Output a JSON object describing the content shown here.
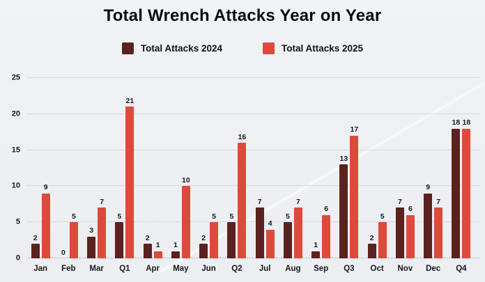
{
  "title": "Total Wrench Attacks Year on Year",
  "legend": [
    {
      "label": "Total Attacks 2024",
      "color": "#5B211F"
    },
    {
      "label": "Total Attacks 2025",
      "color": "#DD4A3C"
    }
  ],
  "chart_data": {
    "type": "bar",
    "title": "Total Wrench Attacks Year on Year",
    "categories": [
      "Jan",
      "Feb",
      "Mar",
      "Q1",
      "Apr",
      "May",
      "Jun",
      "Q2",
      "Jul",
      "Aug",
      "Sep",
      "Q3",
      "Oct",
      "Nov",
      "Dec",
      "Q4"
    ],
    "series": [
      {
        "name": "Total Attacks 2024",
        "color": "#5B211F",
        "values": [
          2,
          0,
          3,
          5,
          2,
          1,
          2,
          5,
          7,
          5,
          1,
          13,
          2,
          7,
          9,
          18
        ]
      },
      {
        "name": "Total Attacks 2025",
        "color": "#DD4A3C",
        "values": [
          9,
          5,
          7,
          21,
          1,
          10,
          5,
          16,
          4,
          7,
          6,
          17,
          5,
          6,
          7,
          18
        ]
      }
    ],
    "xlabel": "",
    "ylabel": "",
    "ylim": [
      0,
      25
    ],
    "yticks": [
      0,
      5,
      10,
      15,
      20,
      25
    ],
    "grid": true,
    "legend_position": "top",
    "data_labels": true
  }
}
